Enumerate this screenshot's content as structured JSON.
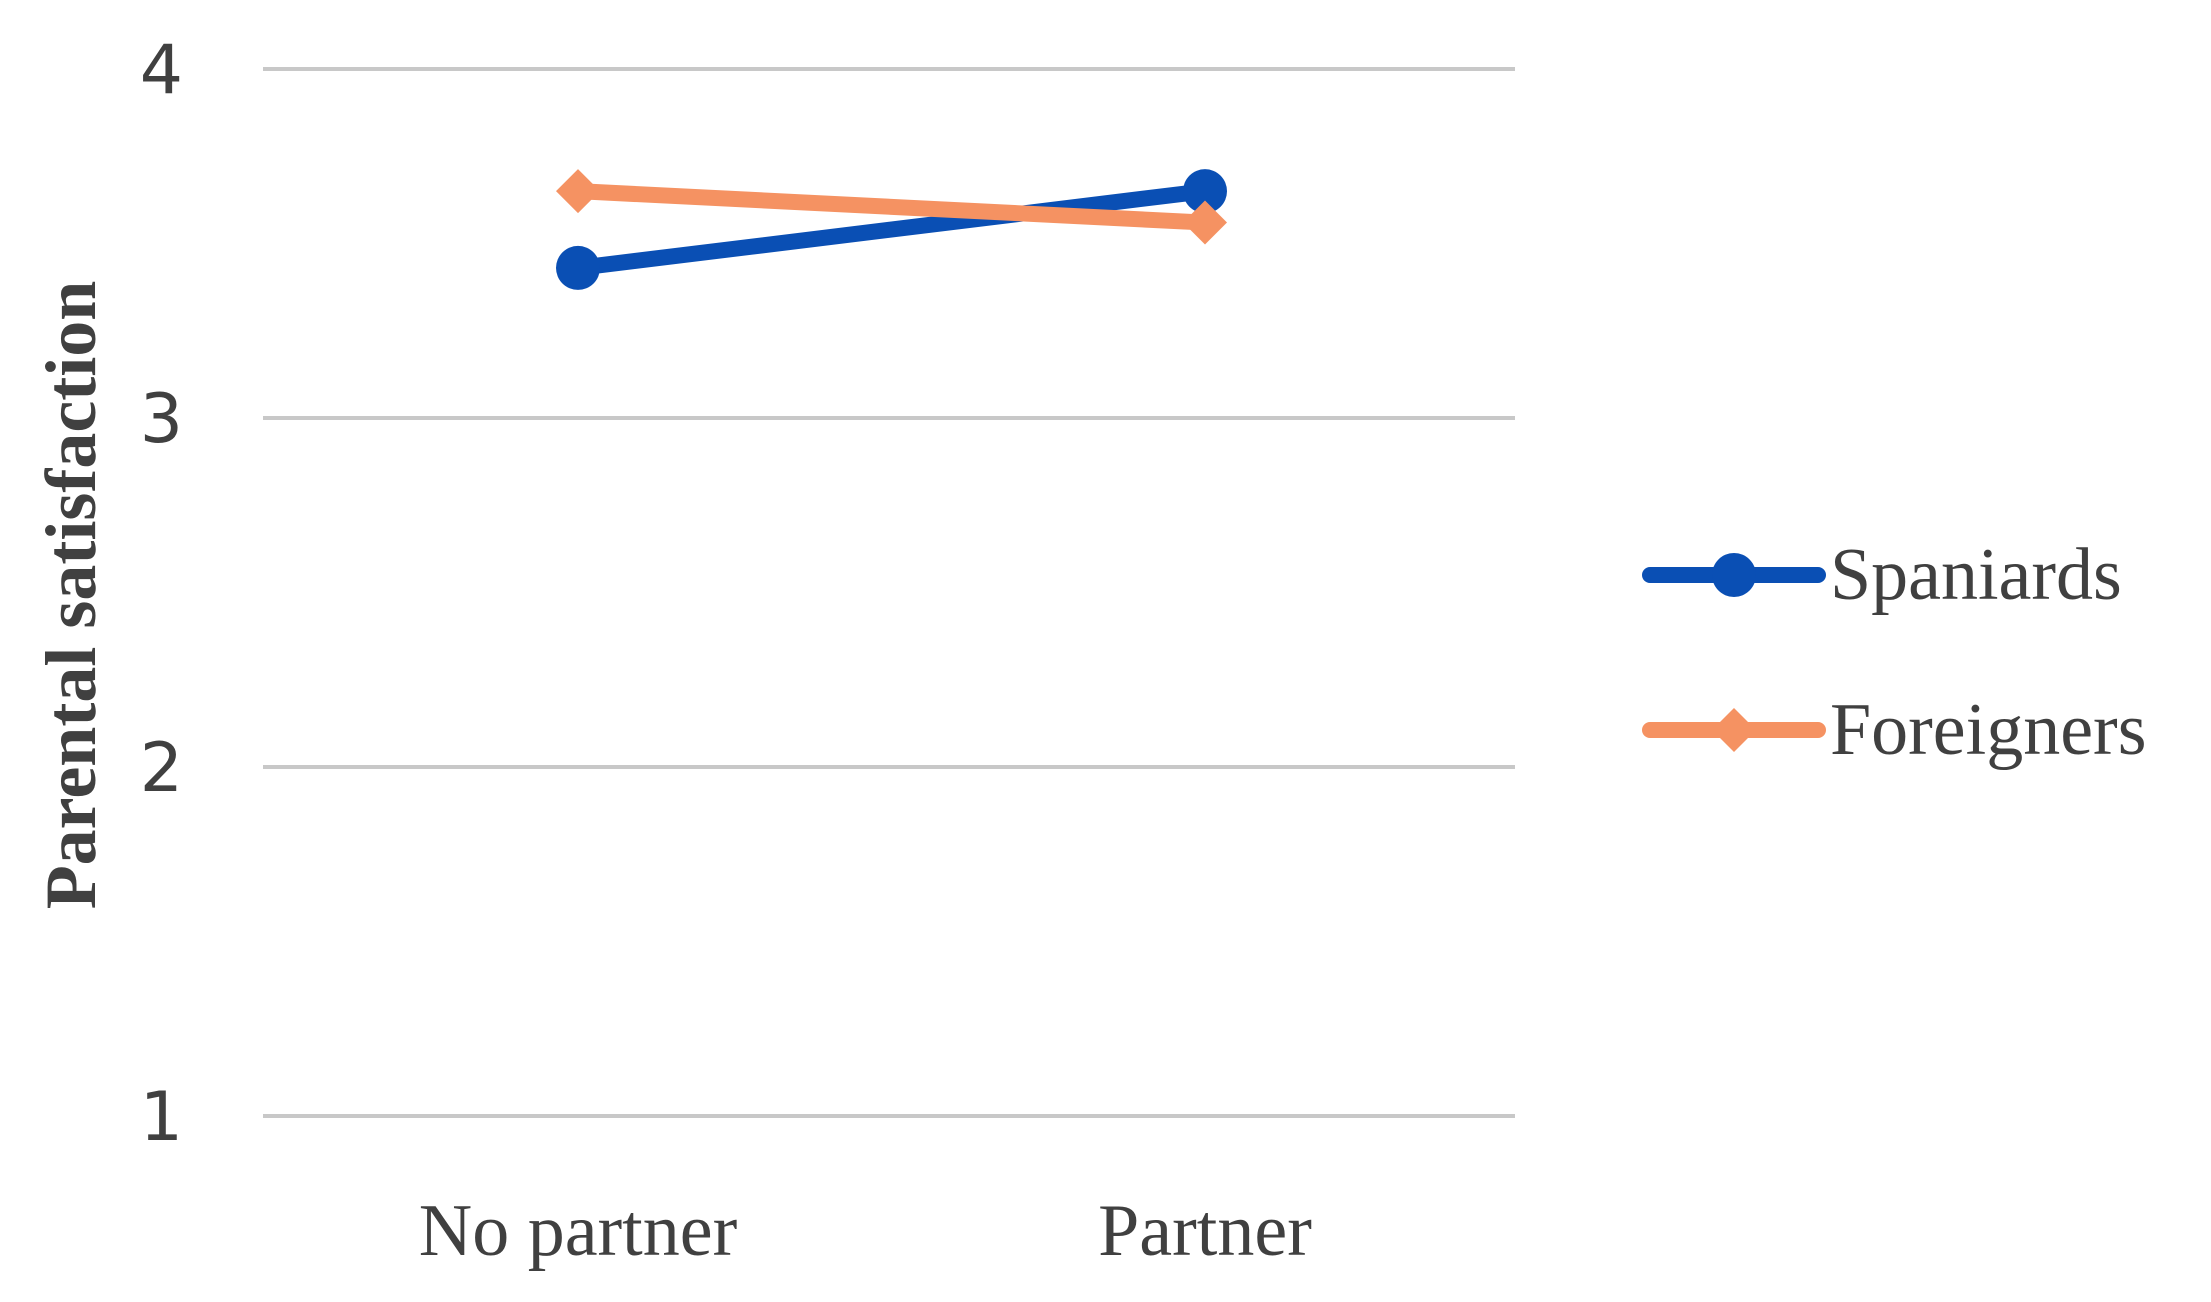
{
  "chart_data": {
    "type": "line",
    "title": "",
    "xlabel": "",
    "ylabel": "Parental satisfaction",
    "categories": [
      "No partner",
      "Partner"
    ],
    "ylim": [
      1,
      4
    ],
    "yticks": [
      "1",
      "2",
      "3",
      "4"
    ],
    "grid": true,
    "legend_position": "right",
    "series": [
      {
        "name": "Spaniards",
        "values": [
          3.43,
          3.65
        ],
        "color": "#0a4fb4",
        "marker": "circle"
      },
      {
        "name": "Foreigners",
        "values": [
          3.65,
          3.56
        ],
        "color": "#f59262",
        "marker": "diamond"
      }
    ]
  }
}
